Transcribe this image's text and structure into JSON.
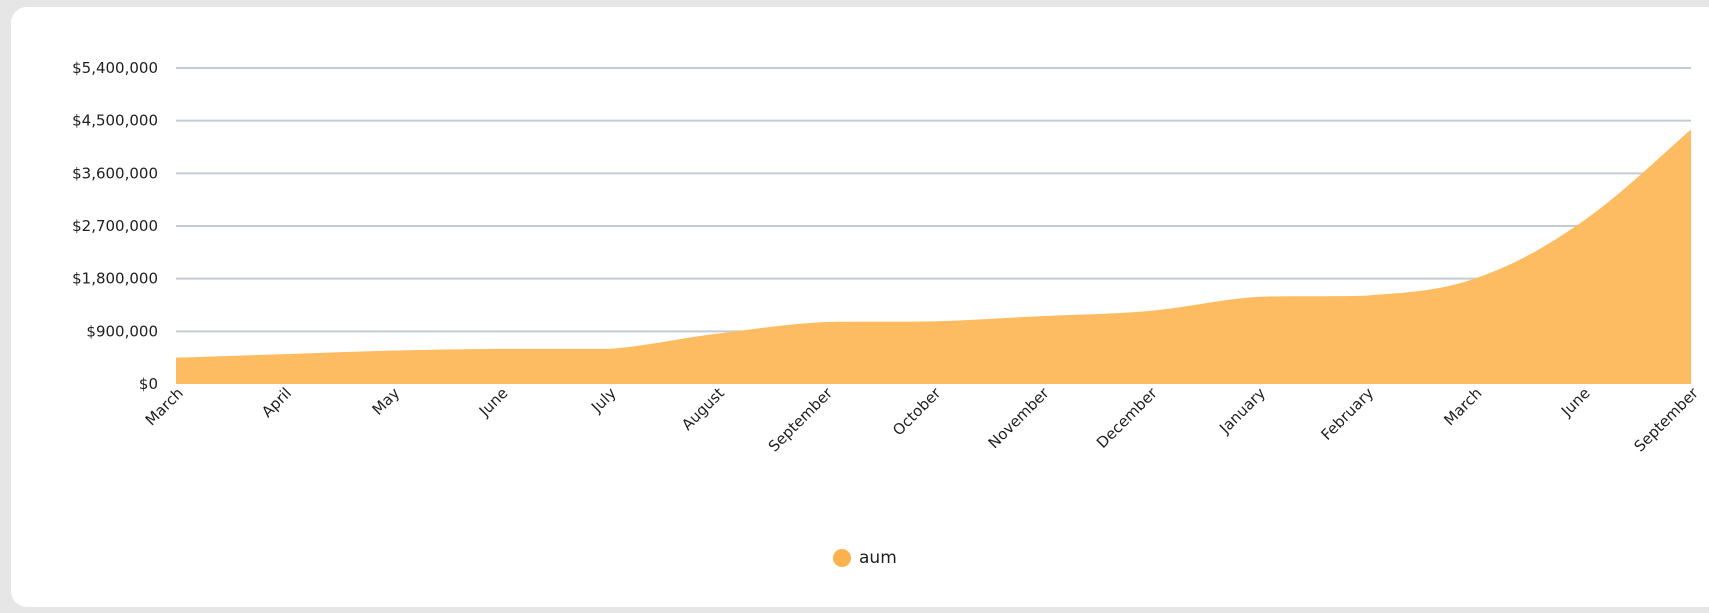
{
  "colors": {
    "area_fill": "#fdbc62",
    "grid": "#c3ccd4",
    "legend_swatch": "#fdb24d"
  },
  "chart_data": {
    "type": "area",
    "categories": [
      "March",
      "April",
      "May",
      "June",
      "July",
      "August",
      "September",
      "October",
      "November",
      "December",
      "January",
      "February",
      "March",
      "June",
      "September"
    ],
    "series": [
      {
        "name": "aum",
        "values": [
          450000,
          510000,
          570000,
          600000,
          600000,
          860000,
          1060000,
          1070000,
          1160000,
          1250000,
          1490000,
          1510000,
          1800000,
          2780000,
          4350000
        ]
      }
    ],
    "yticks": [
      "$0",
      "$900,000",
      "$1,800,000",
      "$2,700,000",
      "$3,600,000",
      "$4,500,000",
      "$5,400,000"
    ],
    "ylim": [
      0,
      5400000
    ],
    "grid": true,
    "legend_position": "bottom-center"
  }
}
